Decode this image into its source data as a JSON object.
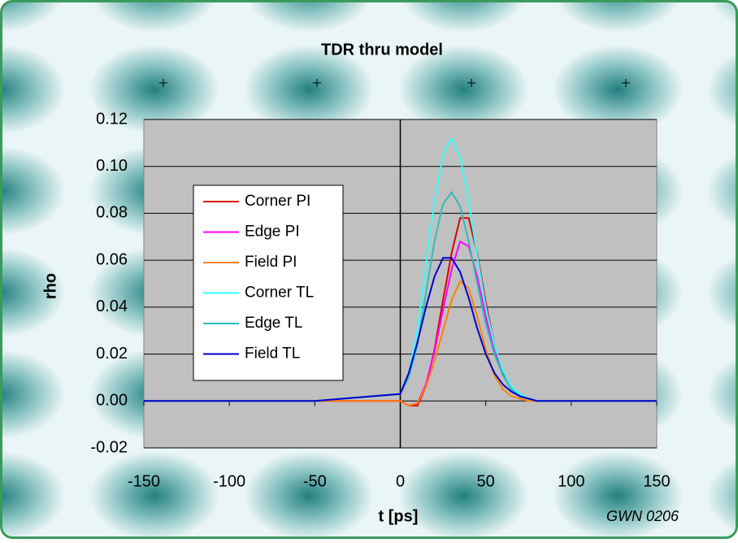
{
  "chart_data": {
    "type": "line",
    "title": "TDR thru model",
    "xlabel": "t [ps]",
    "ylabel": "rho",
    "annotation": "GWN 0206",
    "x": [
      -150,
      -100,
      -50,
      0,
      5,
      10,
      15,
      20,
      25,
      30,
      35,
      40,
      45,
      50,
      55,
      60,
      65,
      70,
      75,
      80,
      90,
      100,
      150
    ],
    "series": [
      {
        "name": "Corner PI",
        "color": "#e00000",
        "values": [
          0,
          0,
          0,
          0,
          -0.002,
          -0.002,
          0.006,
          0.022,
          0.043,
          0.063,
          0.078,
          0.078,
          0.063,
          0.042,
          0.024,
          0.012,
          0.005,
          0.002,
          0.001,
          0,
          0,
          0,
          0
        ]
      },
      {
        "name": "Edge PI",
        "color": "#ff00ff",
        "values": [
          0,
          0,
          0,
          0,
          -0.002,
          -0.001,
          0.007,
          0.021,
          0.039,
          0.056,
          0.068,
          0.066,
          0.053,
          0.036,
          0.021,
          0.011,
          0.005,
          0.002,
          0.001,
          0,
          0,
          0,
          0
        ]
      },
      {
        "name": "Field PI",
        "color": "#ff8000",
        "values": [
          0,
          0,
          0,
          0,
          -0.002,
          -0.001,
          0.006,
          0.017,
          0.03,
          0.043,
          0.051,
          0.048,
          0.036,
          0.022,
          0.011,
          0.005,
          0.002,
          0.001,
          0,
          0,
          0,
          0,
          0
        ]
      },
      {
        "name": "Corner TL",
        "color": "#33ffff",
        "values": [
          0,
          0,
          0,
          0.003,
          0.012,
          0.03,
          0.058,
          0.085,
          0.105,
          0.112,
          0.104,
          0.085,
          0.062,
          0.04,
          0.024,
          0.013,
          0.006,
          0.003,
          0.001,
          0,
          0,
          0,
          0
        ]
      },
      {
        "name": "Edge TL",
        "color": "#33bbbb",
        "values": [
          0,
          0,
          0,
          0.003,
          0.01,
          0.024,
          0.046,
          0.068,
          0.084,
          0.089,
          0.083,
          0.068,
          0.05,
          0.033,
          0.02,
          0.011,
          0.005,
          0.002,
          0.001,
          0,
          0,
          0,
          0
        ]
      },
      {
        "name": "Field TL",
        "color": "#0000cc",
        "values": [
          0,
          0,
          0,
          0.003,
          0.012,
          0.025,
          0.04,
          0.053,
          0.061,
          0.061,
          0.055,
          0.044,
          0.031,
          0.02,
          0.012,
          0.007,
          0.004,
          0.002,
          0.001,
          0,
          0,
          0,
          0
        ]
      }
    ],
    "xlim": [
      -150,
      150
    ],
    "xticks": [
      -150,
      -100,
      -50,
      0,
      50,
      100,
      150
    ],
    "ylim": [
      -0.02,
      0.12
    ],
    "yticks": [
      {
        "value": -0.02,
        "label": "-0.02"
      },
      {
        "value": 0,
        "label": "0.00"
      },
      {
        "value": 0.02,
        "label": "0.02"
      },
      {
        "value": 0.04,
        "label": "0.04"
      },
      {
        "value": 0.06,
        "label": "0.06"
      },
      {
        "value": 0.08,
        "label": "0.08"
      },
      {
        "value": 0.1,
        "label": "0.10"
      },
      {
        "value": 0.12,
        "label": "0.12"
      }
    ],
    "grid": true,
    "legend": "upper-left",
    "plot_background": "#c0c0c0"
  }
}
